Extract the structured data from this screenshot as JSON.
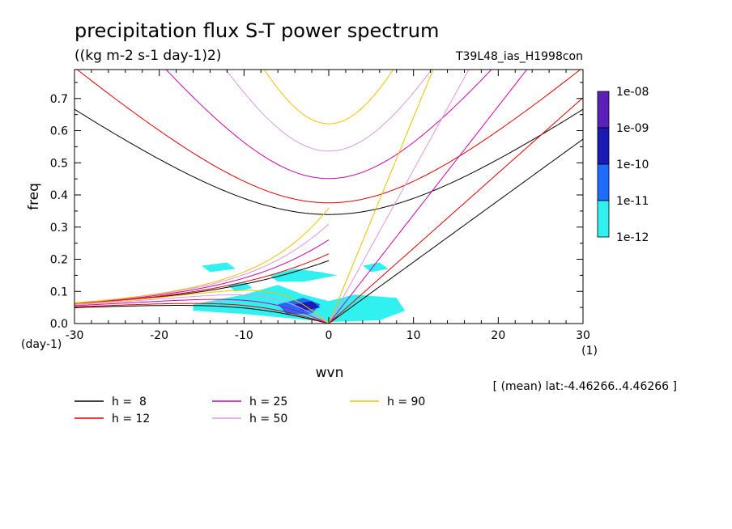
{
  "chart_data": {
    "type": "heatmap",
    "title": "precipitation flux S-T power spectrum",
    "subtitle": "((kg m-2 s-1 day-1)2)",
    "run_label": "T39L48_ias_H1998con",
    "xlabel": "wvn",
    "ylabel": "freq",
    "x_unit": "(1)",
    "y_unit": "(day-1)",
    "xlim": [
      -30,
      30
    ],
    "ylim": [
      0,
      0.79
    ],
    "x_ticks": [
      -30,
      -20,
      -10,
      0,
      10,
      20,
      30
    ],
    "x_tick_labels": [
      "-30",
      "-20",
      "-10",
      "0",
      "10",
      "20",
      "30"
    ],
    "y_ticks": [
      0,
      0.1,
      0.2,
      0.3,
      0.4,
      0.5,
      0.6,
      0.7
    ],
    "y_tick_labels": [
      "0.0",
      "0.1",
      "0.2",
      "0.3",
      "0.4",
      "0.5",
      "0.6",
      "0.7"
    ],
    "footnote": "[ (mean) lat:-4.46266..4.46266 ]",
    "colorbar": {
      "labels": [
        "1e-08",
        "1e-09",
        "1e-10",
        "1e-11",
        "1e-12"
      ],
      "colors": [
        "#5a20b8",
        "#1a1ab4",
        "#1e6cff",
        "#30f0f0"
      ]
    },
    "dispersion_curves": [
      {
        "name": "h =  8",
        "h": 8,
        "color": "#000000"
      },
      {
        "name": "h = 12",
        "h": 12,
        "color": "#dd0000"
      },
      {
        "name": "h = 25",
        "h": 25,
        "color": "#cc00aa"
      },
      {
        "name": "h = 50",
        "h": 50,
        "color": "#dd99dd"
      },
      {
        "name": "h = 90",
        "h": 90,
        "color": "#f0c000"
      }
    ],
    "power_regions": [
      {
        "level": "1e-12..1e-11",
        "color": "#30f0f0",
        "points": [
          [
            -16,
            0.06
          ],
          [
            -10,
            0.09
          ],
          [
            -6,
            0.12
          ],
          [
            -3,
            0.09
          ],
          [
            0,
            0.07
          ],
          [
            3,
            0.09
          ],
          [
            8,
            0.08
          ],
          [
            9,
            0.04
          ],
          [
            6,
            0.01
          ],
          [
            0,
            0.005
          ],
          [
            -10,
            0.03
          ],
          [
            -16,
            0.04
          ]
        ]
      },
      {
        "level": "1e-12..1e-11",
        "color": "#30f0f0",
        "points": [
          [
            -7,
            0.15
          ],
          [
            -4,
            0.17
          ],
          [
            -1,
            0.16
          ],
          [
            1,
            0.15
          ],
          [
            -3,
            0.13
          ],
          [
            -6,
            0.13
          ]
        ]
      },
      {
        "level": "1e-12..1e-11",
        "color": "#30f0f0",
        "points": [
          [
            -15,
            0.18
          ],
          [
            -12,
            0.19
          ],
          [
            -11,
            0.17
          ],
          [
            -14,
            0.16
          ]
        ]
      },
      {
        "level": "1e-12..1e-11",
        "color": "#30f0f0",
        "points": [
          [
            4,
            0.18
          ],
          [
            6,
            0.19
          ],
          [
            7,
            0.17
          ],
          [
            5,
            0.16
          ]
        ]
      },
      {
        "level": "1e-12..1e-11",
        "color": "#30f0f0",
        "points": [
          [
            -12,
            0.12
          ],
          [
            -10,
            0.13
          ],
          [
            -9,
            0.11
          ],
          [
            -11,
            0.1
          ]
        ]
      },
      {
        "level": "1e-11..1e-10",
        "color": "#1e6cff",
        "points": [
          [
            -6,
            0.06
          ],
          [
            -3,
            0.08
          ],
          [
            -1,
            0.06
          ],
          [
            -2,
            0.03
          ],
          [
            -5,
            0.03
          ]
        ]
      },
      {
        "level": "1e-10..1e-09",
        "color": "#1a1ab4",
        "points": [
          [
            -4,
            0.06
          ],
          [
            -2,
            0.07
          ],
          [
            -1,
            0.05
          ],
          [
            -3,
            0.04
          ]
        ]
      }
    ]
  }
}
